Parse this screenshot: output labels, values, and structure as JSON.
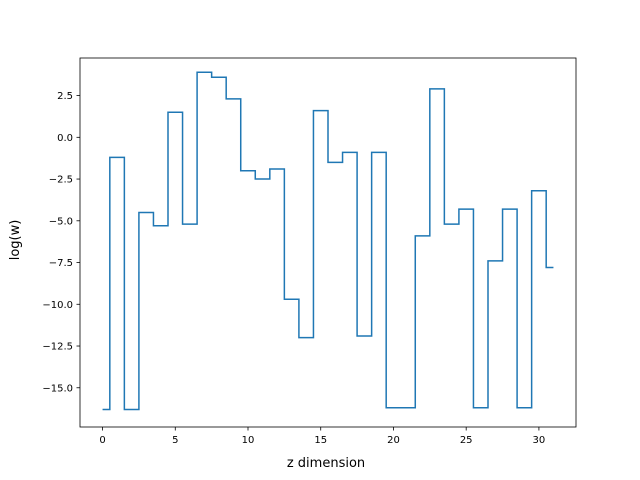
{
  "chart_data": {
    "type": "line",
    "step": "mid",
    "title": "",
    "xlabel": "z dimension",
    "ylabel": "log(w)",
    "xlim": [
      -1.55,
      32.55
    ],
    "ylim": [
      -17.35,
      4.75
    ],
    "xticks": [
      0,
      5,
      10,
      15,
      20,
      25,
      30
    ],
    "xtick_labels": [
      "0",
      "5",
      "10",
      "15",
      "20",
      "25",
      "30"
    ],
    "yticks": [
      -15.0,
      -12.5,
      -10.0,
      -7.5,
      -5.0,
      -2.5,
      0.0,
      2.5
    ],
    "ytick_labels": [
      "−15.0",
      "−12.5",
      "−10.0",
      "−7.5",
      "−5.0",
      "−2.5",
      "0.0",
      "2.5"
    ],
    "grid": false,
    "color": "#1f77b4",
    "series": [
      {
        "x": [
          0,
          1,
          2,
          3,
          4,
          5,
          6,
          7,
          8,
          9,
          10,
          11,
          12,
          13,
          14,
          15,
          16,
          17,
          18,
          19,
          20,
          21,
          22,
          23,
          24,
          25,
          26,
          27,
          28,
          29,
          30,
          31
        ],
        "values": [
          -16.3,
          -1.2,
          -16.3,
          -4.5,
          -5.3,
          1.5,
          -5.2,
          3.9,
          3.6,
          2.3,
          -2.0,
          -2.5,
          -1.9,
          -9.7,
          -12.0,
          1.6,
          -1.5,
          -0.9,
          -11.9,
          -0.9,
          -16.2,
          -16.2,
          -5.9,
          2.9,
          -5.2,
          -4.3,
          -16.2,
          -7.4,
          -4.3,
          -16.2,
          -3.2,
          -7.8
        ]
      }
    ]
  }
}
